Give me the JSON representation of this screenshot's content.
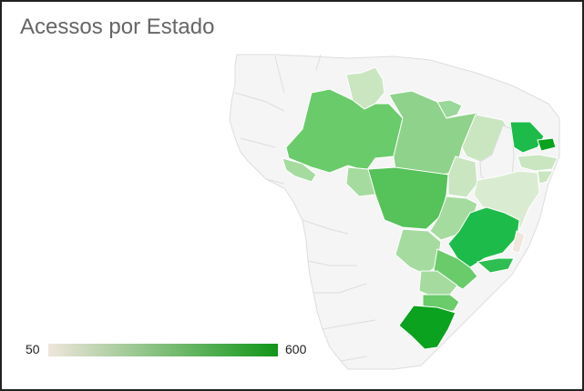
{
  "title": "Acessos por Estado",
  "legend": {
    "min_label": "50",
    "max_label": "600",
    "min_color": "#efe6dc",
    "max_color": "#109618"
  },
  "colors": {
    "background_land": "#f5f5f5",
    "border": "#dddddd",
    "water": "#ffffff"
  }
}
